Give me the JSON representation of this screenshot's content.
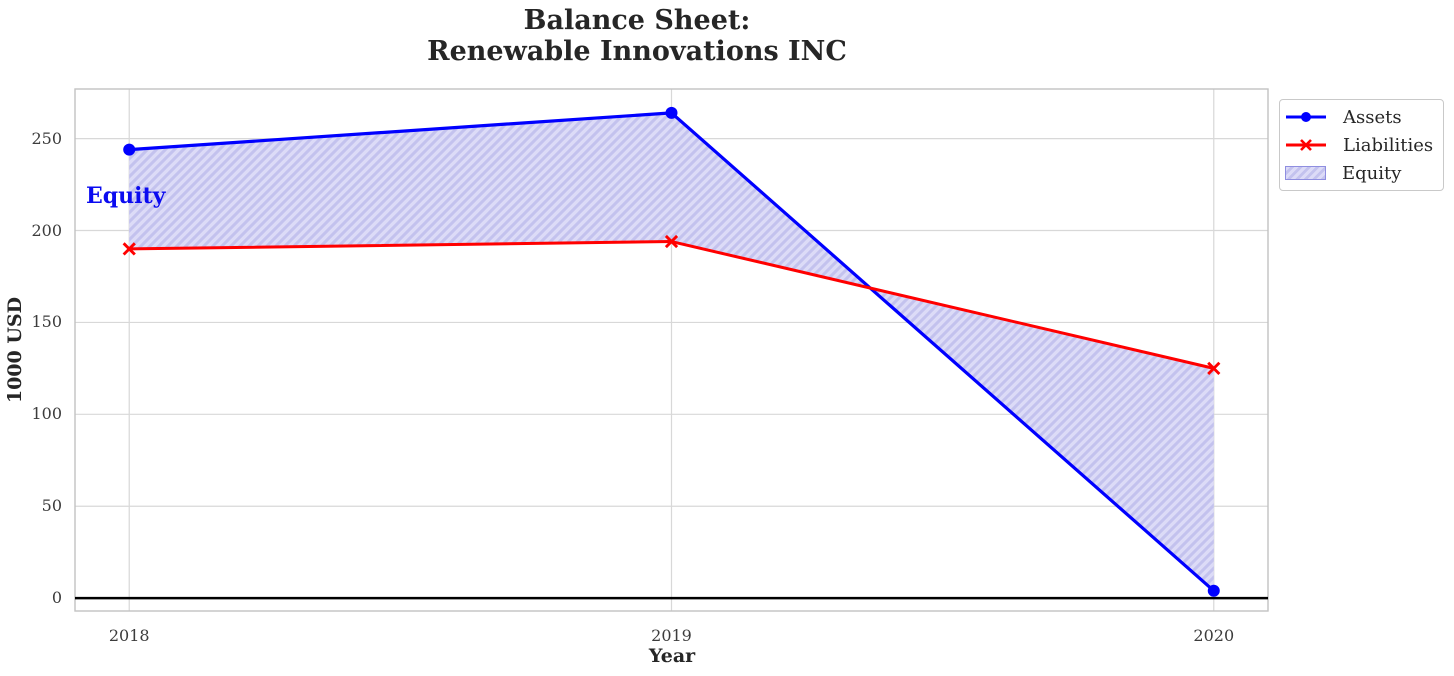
{
  "chart_data": {
    "type": "line",
    "title": "Balance Sheet:\nRenewable Innovations INC",
    "xlabel": "Year",
    "ylabel": "1000 USD",
    "x": [
      2018,
      2019,
      2020
    ],
    "xtick_labels": [
      "2018",
      "2019",
      "2020"
    ],
    "yticks": [
      0,
      50,
      100,
      150,
      200,
      250
    ],
    "xlim": [
      2017.9,
      2020.1
    ],
    "ylim": [
      -7,
      277
    ],
    "grid": true,
    "series": [
      {
        "name": "Assets",
        "color": "#0000ff",
        "marker": "circle",
        "line_width": 3.2,
        "values": [
          244,
          264,
          4
        ]
      },
      {
        "name": "Liabilities",
        "color": "#ff0000",
        "marker": "x",
        "line_width": 3.0,
        "values": [
          190,
          194,
          125
        ]
      }
    ],
    "fill_between": {
      "label": "Equity",
      "between": [
        "Assets",
        "Liabilities"
      ],
      "face_color": "#dcdbf7",
      "hatch_color": "#c3c2ee",
      "hatch": "//"
    },
    "annotation": {
      "text": "Equity",
      "color": "#0b0bf0"
    },
    "zero_line": {
      "y": 0,
      "color": "#000000"
    },
    "legend": {
      "position": "upper-right-outside",
      "entries": [
        "Assets",
        "Liabilities",
        "Equity"
      ]
    },
    "style": {
      "grid_color": "#d8d8d8",
      "spine_color": "#c2c2c2",
      "tick_color": "#3c3c3c",
      "title_color": "#262626"
    }
  }
}
